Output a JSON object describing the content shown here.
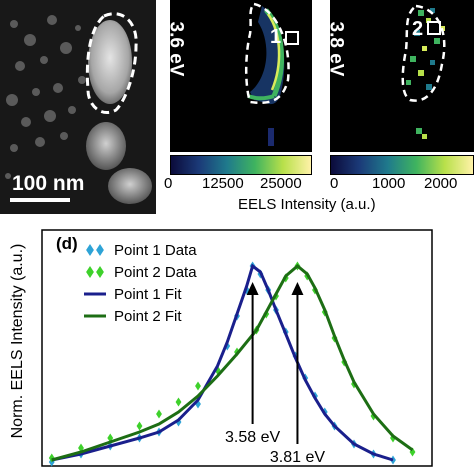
{
  "stem": {
    "scalebar_label": "100 nm",
    "region_outline": "white-dashed"
  },
  "maps": [
    {
      "energy_label": "3.6 eV",
      "point_label": "1",
      "colorbar": {
        "min": 0,
        "max": 30000,
        "ticks": [
          "0",
          "12500",
          "25000"
        ]
      }
    },
    {
      "energy_label": "3.8 eV",
      "point_label": "2",
      "colorbar": {
        "min": 0,
        "max": 2500,
        "ticks": [
          "0",
          "1000",
          "2000"
        ]
      }
    }
  ],
  "colorbar_axis_label": "EELS Intensity (a.u.)",
  "colors": {
    "point1_data": "#2ea3d6",
    "point2_data": "#3ed12b",
    "point1_fit": "#1a1f8c",
    "point2_fit": "#1d6e14",
    "colormap": [
      "#0b0b3a",
      "#1b3a78",
      "#1f7a8c",
      "#3fb35f",
      "#b8e04a",
      "#fff2a8"
    ]
  },
  "chart_data": {
    "type": "line",
    "panel_label": "(d)",
    "ylabel": "Norm. EELS Intensity (a.u.)",
    "xlabel": "",
    "xlim": [
      2.5,
      4.5
    ],
    "ylim": [
      0,
      1.18
    ],
    "grid": false,
    "legend_position": "top-left",
    "series": [
      {
        "name": "Point 1 Data",
        "style": "markers",
        "x": [
          2.55,
          2.7,
          2.85,
          3.0,
          3.1,
          3.2,
          3.3,
          3.4,
          3.45,
          3.5,
          3.55,
          3.58,
          3.62,
          3.66,
          3.7,
          3.75,
          3.8,
          3.85,
          3.9,
          3.95,
          4.0,
          4.1,
          4.2,
          4.3
        ],
        "y": [
          0.02,
          0.06,
          0.1,
          0.14,
          0.17,
          0.22,
          0.31,
          0.48,
          0.6,
          0.75,
          0.88,
          1.0,
          0.96,
          0.88,
          0.78,
          0.67,
          0.55,
          0.44,
          0.35,
          0.27,
          0.2,
          0.11,
          0.06,
          0.03
        ]
      },
      {
        "name": "Point 2 Data",
        "style": "markers",
        "x": [
          2.55,
          2.7,
          2.85,
          3.0,
          3.1,
          3.2,
          3.3,
          3.4,
          3.5,
          3.6,
          3.65,
          3.7,
          3.75,
          3.81,
          3.86,
          3.9,
          3.95,
          4.0,
          4.05,
          4.1,
          4.2,
          4.3,
          4.4
        ],
        "y": [
          0.04,
          0.09,
          0.14,
          0.2,
          0.26,
          0.32,
          0.4,
          0.48,
          0.57,
          0.68,
          0.76,
          0.85,
          0.94,
          1.0,
          0.95,
          0.88,
          0.77,
          0.64,
          0.52,
          0.41,
          0.25,
          0.14,
          0.07
        ]
      },
      {
        "name": "Point 1 Fit",
        "style": "line",
        "x": [
          2.55,
          2.7,
          2.85,
          3.0,
          3.1,
          3.2,
          3.3,
          3.4,
          3.45,
          3.5,
          3.55,
          3.58,
          3.62,
          3.66,
          3.7,
          3.75,
          3.8,
          3.85,
          3.9,
          3.95,
          4.0,
          4.1,
          4.2,
          4.3
        ],
        "y": [
          0.03,
          0.06,
          0.1,
          0.14,
          0.17,
          0.23,
          0.33,
          0.5,
          0.62,
          0.76,
          0.9,
          1.0,
          0.97,
          0.88,
          0.78,
          0.66,
          0.54,
          0.43,
          0.34,
          0.26,
          0.2,
          0.11,
          0.06,
          0.03
        ]
      },
      {
        "name": "Point 2 Fit",
        "style": "line",
        "x": [
          2.55,
          2.7,
          2.85,
          3.0,
          3.1,
          3.2,
          3.3,
          3.4,
          3.5,
          3.6,
          3.65,
          3.7,
          3.75,
          3.81,
          3.86,
          3.9,
          3.95,
          4.0,
          4.05,
          4.1,
          4.2,
          4.3,
          4.4
        ],
        "y": [
          0.03,
          0.07,
          0.12,
          0.17,
          0.21,
          0.27,
          0.35,
          0.45,
          0.56,
          0.68,
          0.77,
          0.86,
          0.95,
          1.0,
          0.96,
          0.89,
          0.78,
          0.65,
          0.53,
          0.42,
          0.26,
          0.15,
          0.08
        ]
      }
    ],
    "annotations": [
      {
        "text": "3.58 eV",
        "x": 3.58,
        "arrow_to_y": 0.92,
        "label_y": 0.14
      },
      {
        "text": "3.81 eV",
        "x": 3.81,
        "arrow_to_y": 0.92,
        "label_y": 0.04
      }
    ]
  }
}
